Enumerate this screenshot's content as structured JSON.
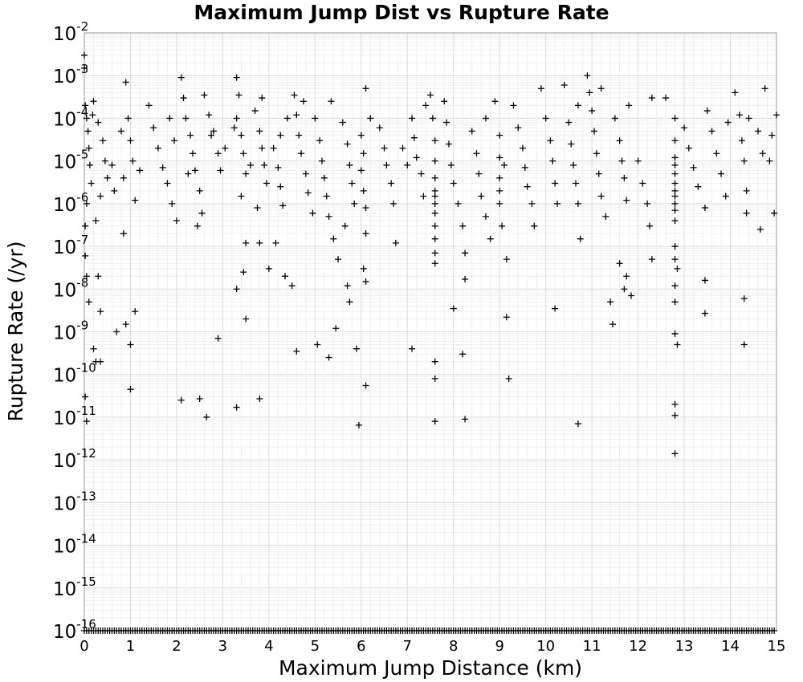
{
  "chart_data": {
    "type": "scatter",
    "title": "Maximum Jump Dist vs Rupture Rate",
    "xlabel": "Maximum Jump Distance (km)",
    "ylabel": "Rupture Rate (/yr)",
    "xlim": [
      0,
      15
    ],
    "ylim": [
      1e-16,
      0.01
    ],
    "y_scale": "log",
    "grid": true,
    "marker": "plus",
    "marker_color": "#000000",
    "x_ticks": [
      "0",
      "1",
      "2",
      "3",
      "4",
      "5",
      "6",
      "7",
      "8",
      "9",
      "10",
      "11",
      "12",
      "13",
      "14",
      "15"
    ],
    "y_ticks": [
      {
        "base": "10",
        "exp": "-2"
      },
      {
        "base": "10",
        "exp": "-3"
      },
      {
        "base": "10",
        "exp": "-4"
      },
      {
        "base": "10",
        "exp": "-5"
      },
      {
        "base": "10",
        "exp": "-6"
      },
      {
        "base": "10",
        "exp": "-7"
      },
      {
        "base": "10",
        "exp": "-8"
      },
      {
        "base": "10",
        "exp": "-9"
      },
      {
        "base": "10",
        "exp": "-10"
      },
      {
        "base": "10",
        "exp": "-11"
      },
      {
        "base": "10",
        "exp": "-12"
      },
      {
        "base": "10",
        "exp": "-13"
      },
      {
        "base": "10",
        "exp": "-14"
      },
      {
        "base": "10",
        "exp": "-15"
      },
      {
        "base": "10",
        "exp": "-16"
      }
    ],
    "points": [
      [
        0.0,
        0.003
      ],
      [
        0.0,
        0.0015
      ],
      [
        0.02,
        0.0002
      ],
      [
        0.05,
        0.0001
      ],
      [
        0.08,
        5e-05
      ],
      [
        0.1,
        2e-05
      ],
      [
        0.12,
        8e-06
      ],
      [
        0.15,
        3e-06
      ],
      [
        0.05,
        1e-06
      ],
      [
        0.02,
        3e-07
      ],
      [
        0.02,
        6e-08
      ],
      [
        0.05,
        2e-08
      ],
      [
        0.1,
        5e-09
      ],
      [
        0.2,
        4e-10
      ],
      [
        0.25,
        2e-10
      ],
      [
        0.35,
        2e-10
      ],
      [
        0.35,
        3e-09
      ],
      [
        0.3,
        2e-08
      ],
      [
        0.02,
        3e-11
      ],
      [
        0.05,
        8e-12
      ],
      [
        0.2,
        0.00025
      ],
      [
        0.3,
        8e-05
      ],
      [
        0.4,
        3e-05
      ],
      [
        0.45,
        1e-05
      ],
      [
        0.5,
        4e-06
      ],
      [
        0.35,
        1.5e-06
      ],
      [
        0.25,
        4e-07
      ],
      [
        0.18,
        0.00012
      ],
      [
        0.6,
        8e-06
      ],
      [
        0.65,
        2e-06
      ],
      [
        0.9,
        0.0007
      ],
      [
        0.95,
        0.0001
      ],
      [
        1.0,
        3e-05
      ],
      [
        1.05,
        1e-05
      ],
      [
        0.85,
        4e-06
      ],
      [
        1.1,
        1.2e-06
      ],
      [
        0.85,
        2e-07
      ],
      [
        1.1,
        3e-09
      ],
      [
        0.9,
        1.5e-09
      ],
      [
        1.0,
        5e-10
      ],
      [
        1.0,
        4.5e-11
      ],
      [
        0.7,
        1e-09
      ],
      [
        0.8,
        5e-05
      ],
      [
        1.2,
        6e-06
      ],
      [
        1.4,
        0.0002
      ],
      [
        1.5,
        6e-05
      ],
      [
        1.6,
        2e-05
      ],
      [
        1.7,
        7e-06
      ],
      [
        1.8,
        3e-06
      ],
      [
        1.9,
        1e-06
      ],
      [
        2.0,
        4e-07
      ],
      [
        1.85,
        0.0001
      ],
      [
        1.95,
        3e-05
      ],
      [
        2.1,
        0.0009
      ],
      [
        2.15,
        0.0003
      ],
      [
        2.2,
        0.0001
      ],
      [
        2.3,
        4e-05
      ],
      [
        2.35,
        1.5e-05
      ],
      [
        2.4,
        6e-06
      ],
      [
        2.5,
        2e-06
      ],
      [
        2.55,
        6e-07
      ],
      [
        2.45,
        3e-07
      ],
      [
        2.1,
        2.5e-11
      ],
      [
        2.5,
        2.7e-11
      ],
      [
        2.65,
        1e-11
      ],
      [
        2.25,
        5e-06
      ],
      [
        2.6,
        0.00035
      ],
      [
        2.7,
        0.00012
      ],
      [
        2.8,
        5e-05
      ],
      [
        2.9,
        1.5e-05
      ],
      [
        2.95,
        6e-06
      ],
      [
        2.9,
        7e-10
      ],
      [
        2.75,
        4e-05
      ],
      [
        3.05,
        2e-05
      ],
      [
        3.3,
        0.0009
      ],
      [
        3.35,
        0.00035
      ],
      [
        3.3,
        0.0001
      ],
      [
        3.4,
        4e-05
      ],
      [
        3.45,
        1.5e-05
      ],
      [
        3.5,
        5e-06
      ],
      [
        3.4,
        1.5e-06
      ],
      [
        3.5,
        1.2e-07
      ],
      [
        3.45,
        2.5e-08
      ],
      [
        3.3,
        1e-08
      ],
      [
        3.5,
        2e-09
      ],
      [
        3.3,
        1.7e-11
      ],
      [
        3.6,
        8e-06
      ],
      [
        3.25,
        6e-05
      ],
      [
        3.7,
        0.00015
      ],
      [
        3.8,
        5e-05
      ],
      [
        3.85,
        2e-05
      ],
      [
        3.9,
        8e-06
      ],
      [
        3.95,
        3e-06
      ],
      [
        3.75,
        8e-07
      ],
      [
        3.8,
        1.2e-07
      ],
      [
        3.8,
        2.7e-11
      ],
      [
        4.0,
        3e-08
      ],
      [
        3.85,
        0.0003
      ],
      [
        4.1,
        2e-05
      ],
      [
        4.2,
        7e-06
      ],
      [
        4.25,
        2.5e-06
      ],
      [
        4.3,
        9e-07
      ],
      [
        4.15,
        1.2e-07
      ],
      [
        4.35,
        2e-08
      ],
      [
        4.5,
        1.2e-08
      ],
      [
        4.4,
        0.0001
      ],
      [
        4.25,
        4e-05
      ],
      [
        4.55,
        0.00035
      ],
      [
        4.6,
        0.00012
      ],
      [
        4.65,
        4e-05
      ],
      [
        4.7,
        1.5e-05
      ],
      [
        4.8,
        5e-06
      ],
      [
        4.85,
        1.8e-06
      ],
      [
        4.95,
        6e-07
      ],
      [
        4.6,
        3.5e-10
      ],
      [
        4.75,
        0.00025
      ],
      [
        5.0,
        0.0001
      ],
      [
        5.1,
        3e-05
      ],
      [
        5.15,
        1e-05
      ],
      [
        5.2,
        4e-06
      ],
      [
        5.25,
        1.5e-06
      ],
      [
        5.3,
        5e-07
      ],
      [
        5.4,
        1.5e-07
      ],
      [
        5.5,
        5e-08
      ],
      [
        5.45,
        1.2e-09
      ],
      [
        5.3,
        2.5e-10
      ],
      [
        5.05,
        5e-10
      ],
      [
        5.35,
        0.00025
      ],
      [
        5.6,
        8e-05
      ],
      [
        5.7,
        2.5e-05
      ],
      [
        5.75,
        8e-06
      ],
      [
        5.8,
        3e-06
      ],
      [
        5.85,
        1e-06
      ],
      [
        5.7,
        1.2e-08
      ],
      [
        5.75,
        5e-09
      ],
      [
        5.9,
        4e-10
      ],
      [
        5.65,
        3e-07
      ],
      [
        6.0,
        4e-05
      ],
      [
        6.05,
        1.5e-05
      ],
      [
        6.0,
        6e-06
      ],
      [
        6.05,
        2e-06
      ],
      [
        6.1,
        8e-07
      ],
      [
        6.1,
        2e-07
      ],
      [
        6.05,
        3e-08
      ],
      [
        6.1,
        1.5e-08
      ],
      [
        6.1,
        5.5e-11
      ],
      [
        5.95,
        6.5e-12
      ],
      [
        6.1,
        0.0005
      ],
      [
        6.2,
        0.0001
      ],
      [
        6.4,
        6e-05
      ],
      [
        6.5,
        2e-05
      ],
      [
        6.55,
        8e-06
      ],
      [
        6.65,
        3e-06
      ],
      [
        6.7,
        1e-06
      ],
      [
        6.75,
        1.2e-07
      ],
      [
        6.9,
        2e-05
      ],
      [
        7.0,
        8e-06
      ],
      [
        7.1,
        0.0001
      ],
      [
        7.15,
        3.5e-05
      ],
      [
        7.2,
        1.2e-05
      ],
      [
        7.3,
        5e-06
      ],
      [
        7.35,
        1.5e-06
      ],
      [
        7.1,
        4e-10
      ],
      [
        7.4,
        0.0002
      ],
      [
        7.5,
        0.00035
      ],
      [
        7.55,
        0.0001
      ],
      [
        7.6,
        3e-05
      ],
      [
        7.6,
        1e-05
      ],
      [
        7.6,
        4e-06
      ],
      [
        7.6,
        2e-06
      ],
      [
        7.6,
        1.5e-06
      ],
      [
        7.6,
        1e-06
      ],
      [
        7.6,
        6e-07
      ],
      [
        7.6,
        3e-07
      ],
      [
        7.6,
        1.5e-07
      ],
      [
        7.6,
        7e-08
      ],
      [
        7.6,
        4e-08
      ],
      [
        7.6,
        2e-10
      ],
      [
        7.6,
        8e-11
      ],
      [
        7.6,
        8e-12
      ],
      [
        7.8,
        0.00025
      ],
      [
        7.85,
        8e-05
      ],
      [
        7.9,
        2.5e-05
      ],
      [
        7.95,
        8e-06
      ],
      [
        8.0,
        3e-06
      ],
      [
        8.1,
        1e-06
      ],
      [
        8.2,
        3e-07
      ],
      [
        8.25,
        7e-08
      ],
      [
        8.25,
        1.7e-08
      ],
      [
        8.0,
        3.5e-09
      ],
      [
        8.2,
        3e-10
      ],
      [
        8.25,
        9e-12
      ],
      [
        8.4,
        5e-05
      ],
      [
        8.5,
        1.5e-05
      ],
      [
        8.55,
        5e-06
      ],
      [
        8.6,
        1.5e-06
      ],
      [
        8.7,
        5e-07
      ],
      [
        8.8,
        1.5e-07
      ],
      [
        8.7,
        0.0001
      ],
      [
        8.9,
        0.00025
      ],
      [
        9.0,
        4e-05
      ],
      [
        9.0,
        1.2e-05
      ],
      [
        9.0,
        4e-06
      ],
      [
        9.0,
        2e-06
      ],
      [
        9.0,
        1e-06
      ],
      [
        9.05,
        3e-07
      ],
      [
        9.15,
        5e-08
      ],
      [
        9.15,
        2.2e-09
      ],
      [
        9.2,
        8e-11
      ],
      [
        9.1,
        8e-06
      ],
      [
        9.3,
        0.0002
      ],
      [
        9.4,
        6e-05
      ],
      [
        9.5,
        2e-05
      ],
      [
        9.55,
        7e-06
      ],
      [
        9.6,
        2.5e-06
      ],
      [
        9.7,
        1e-06
      ],
      [
        9.75,
        3e-07
      ],
      [
        9.9,
        0.0005
      ],
      [
        10.0,
        0.0001
      ],
      [
        10.1,
        3e-05
      ],
      [
        10.15,
        1e-05
      ],
      [
        10.2,
        3e-06
      ],
      [
        10.25,
        1e-06
      ],
      [
        10.2,
        3.5e-09
      ],
      [
        10.4,
        0.0006
      ],
      [
        10.5,
        8e-05
      ],
      [
        10.55,
        2.5e-05
      ],
      [
        10.6,
        8e-06
      ],
      [
        10.65,
        3e-06
      ],
      [
        10.7,
        1e-06
      ],
      [
        10.75,
        1.5e-07
      ],
      [
        10.7,
        7e-12
      ],
      [
        10.7,
        0.0002
      ],
      [
        10.9,
        0.001
      ],
      [
        10.95,
        0.0004
      ],
      [
        11.0,
        0.00015
      ],
      [
        11.05,
        5e-05
      ],
      [
        11.1,
        1.5e-05
      ],
      [
        11.15,
        5e-06
      ],
      [
        11.2,
        1.5e-06
      ],
      [
        11.3,
        5e-07
      ],
      [
        11.4,
        5e-09
      ],
      [
        11.45,
        1.5e-09
      ],
      [
        11.2,
        0.0005
      ],
      [
        11.5,
        0.0001
      ],
      [
        11.6,
        3e-05
      ],
      [
        11.65,
        1e-05
      ],
      [
        11.7,
        4e-06
      ],
      [
        11.75,
        1.2e-06
      ],
      [
        11.6,
        4e-08
      ],
      [
        11.7,
        1e-08
      ],
      [
        11.75,
        2e-08
      ],
      [
        11.85,
        7e-09
      ],
      [
        11.8,
        0.0002
      ],
      [
        12.0,
        1e-05
      ],
      [
        12.1,
        3e-06
      ],
      [
        12.2,
        1e-06
      ],
      [
        12.25,
        3e-07
      ],
      [
        12.3,
        5e-08
      ],
      [
        12.3,
        0.0003
      ],
      [
        12.6,
        0.0003
      ],
      [
        12.8,
        0.0001
      ],
      [
        12.8,
        3e-05
      ],
      [
        12.8,
        1.2e-05
      ],
      [
        12.8,
        8e-06
      ],
      [
        12.8,
        5e-06
      ],
      [
        12.8,
        3e-06
      ],
      [
        12.8,
        2e-06
      ],
      [
        12.8,
        1.5e-06
      ],
      [
        12.8,
        1e-06
      ],
      [
        12.8,
        7e-07
      ],
      [
        12.8,
        4e-07
      ],
      [
        12.8,
        1e-07
      ],
      [
        12.8,
        5e-08
      ],
      [
        12.8,
        1.2e-08
      ],
      [
        12.8,
        5e-09
      ],
      [
        12.8,
        9e-10
      ],
      [
        12.85,
        5e-10
      ],
      [
        12.8,
        2e-11
      ],
      [
        12.8,
        1.1e-11
      ],
      [
        12.8,
        1.4e-12
      ],
      [
        12.85,
        3e-08
      ],
      [
        13.0,
        6e-05
      ],
      [
        13.1,
        2e-05
      ],
      [
        13.2,
        7e-06
      ],
      [
        13.3,
        2.5e-06
      ],
      [
        13.45,
        8e-07
      ],
      [
        13.45,
        1.6e-08
      ],
      [
        13.45,
        2.7e-09
      ],
      [
        13.5,
        0.00015
      ],
      [
        13.6,
        5e-05
      ],
      [
        13.7,
        1.5e-05
      ],
      [
        13.8,
        5e-06
      ],
      [
        13.9,
        1.5e-06
      ],
      [
        13.95,
        8e-05
      ],
      [
        14.1,
        0.0004
      ],
      [
        14.2,
        0.00012
      ],
      [
        14.25,
        3e-05
      ],
      [
        14.3,
        1e-05
      ],
      [
        14.35,
        2e-06
      ],
      [
        14.35,
        6e-07
      ],
      [
        14.3,
        6e-09
      ],
      [
        14.3,
        5e-10
      ],
      [
        14.4,
        0.0001
      ],
      [
        14.6,
        5e-05
      ],
      [
        14.7,
        1.5e-05
      ],
      [
        14.75,
        0.0005
      ],
      [
        14.65,
        2.5e-07
      ],
      [
        14.85,
        1e-05
      ],
      [
        14.95,
        6e-07
      ],
      [
        15.0,
        0.00012
      ],
      [
        14.9,
        4e-05
      ]
    ]
  }
}
